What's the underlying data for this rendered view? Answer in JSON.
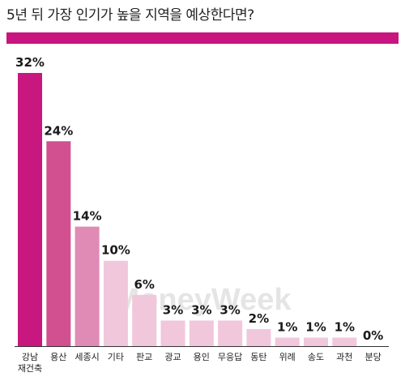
{
  "title": "5년 뒤 가장 인기가 높을 지역을 예상한다면?",
  "watermark": "MoneyWeek",
  "colors": {
    "accent": "#c8157f",
    "bars": [
      "#c8177e",
      "#d2508f",
      "#df8bb6",
      "#f1c7dc",
      "#f1c7dc",
      "#f1c7dc",
      "#f1c7dc",
      "#f1c7dc",
      "#f1c7dc",
      "#f1c7dc",
      "#f1c7dc",
      "#f1c7dc",
      "#f1c7dc"
    ],
    "axis": "#333333"
  },
  "chart_data": {
    "type": "bar",
    "title": "5년 뒤 가장 인기가 높을 지역을 예상한다면?",
    "categories": [
      [
        "강남",
        "재건축"
      ],
      [
        "용산"
      ],
      [
        "세종시"
      ],
      [
        "기타"
      ],
      [
        "판교"
      ],
      [
        "광교"
      ],
      [
        "용인"
      ],
      [
        "무응답"
      ],
      [
        "동탄"
      ],
      [
        "위례"
      ],
      [
        "송도"
      ],
      [
        "과천"
      ],
      [
        "분당"
      ]
    ],
    "values": [
      32,
      24,
      14,
      10,
      6,
      3,
      3,
      3,
      2,
      1,
      1,
      1,
      0
    ],
    "value_labels": [
      "32%",
      "24%",
      "14%",
      "10%",
      "6%",
      "3%",
      "3%",
      "3%",
      "2%",
      "1%",
      "1%",
      "1%",
      "0%"
    ],
    "unit": "%",
    "ylim": [
      0,
      32
    ],
    "grid": false,
    "legend": "none"
  }
}
